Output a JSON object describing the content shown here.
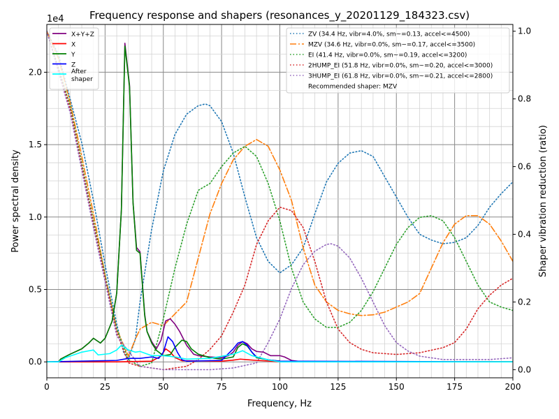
{
  "chart_data": {
    "type": "line",
    "title": "Frequency response and shapers (resonances_y_20201129_184323.csv)",
    "xlabel": "Frequency, Hz",
    "ylabel": "Power spectral density",
    "ylabel_right": "Shaper vibration reduction (ratio)",
    "y_offset_label": "1e4",
    "xlim": [
      0,
      200
    ],
    "ylim": [
      -1100,
      23300
    ],
    "ylim_right": [
      -0.024,
      1.02
    ],
    "x_ticks": [
      "0",
      "25",
      "50",
      "75",
      "100",
      "125",
      "150",
      "175",
      "200"
    ],
    "y_ticks": [
      "0.0",
      "0.5",
      "1.0",
      "1.5",
      "2.0"
    ],
    "y_ticks_right": [
      "0.0",
      "0.2",
      "0.4",
      "0.6",
      "0.8",
      "1.0"
    ],
    "grid": true,
    "legend_left": "top-left",
    "legend_right": "top-right",
    "recommended": "Recommended shaper: MZV",
    "psd_series": [
      {
        "name": "X+Y+Z",
        "color": "#800080",
        "x": [
          0,
          5,
          6,
          10,
          15,
          18,
          20,
          23,
          25,
          28,
          30,
          32,
          33.5,
          35.5,
          37,
          38.5,
          40,
          42,
          43,
          45,
          47,
          49,
          51,
          53,
          55,
          57,
          60,
          63,
          65,
          70,
          75,
          78,
          80,
          82,
          84,
          86,
          88,
          90,
          93,
          96,
          100,
          102,
          105,
          110,
          200
        ],
        "y": [
          0,
          0,
          200,
          530,
          900,
          1300,
          1630,
          1300,
          1630,
          2800,
          4750,
          10500,
          22000,
          19100,
          11000,
          7900,
          7600,
          3300,
          2100,
          1400,
          900,
          1500,
          2830,
          2970,
          2600,
          2100,
          1150,
          530,
          430,
          340,
          290,
          430,
          670,
          1150,
          1400,
          1250,
          900,
          720,
          670,
          430,
          430,
          340,
          100,
          0,
          0
        ]
      },
      {
        "name": "X",
        "color": "#ff0000",
        "x": [
          0,
          30,
          45,
          49,
          51,
          53,
          55,
          58,
          75,
          80,
          83,
          86,
          90,
          95,
          100,
          200
        ],
        "y": [
          0,
          0,
          50,
          400,
          900,
          670,
          300,
          80,
          50,
          120,
          190,
          150,
          100,
          60,
          0,
          0
        ]
      },
      {
        "name": "Y",
        "color": "#008000",
        "x": [
          0,
          5,
          6,
          10,
          15,
          18,
          20,
          23,
          25,
          28,
          30,
          32,
          33.5,
          35.5,
          37,
          38.5,
          40,
          42,
          43,
          45,
          47,
          50,
          53,
          55,
          58,
          60,
          62,
          65,
          70,
          75,
          80,
          82,
          84,
          86,
          88,
          90,
          95,
          100,
          110,
          200
        ],
        "y": [
          0,
          0,
          200,
          530,
          900,
          1300,
          1630,
          1300,
          1630,
          2800,
          4750,
          10500,
          21800,
          19000,
          11000,
          7700,
          7500,
          3200,
          2100,
          1300,
          800,
          430,
          500,
          1000,
          1500,
          1400,
          900,
          530,
          290,
          190,
          340,
          1000,
          1250,
          1100,
          670,
          290,
          140,
          50,
          0,
          0
        ]
      },
      {
        "name": "Z",
        "color": "#0000ff",
        "x": [
          0,
          30,
          35,
          40,
          45,
          48,
          50,
          52,
          54,
          56,
          58,
          60,
          75,
          80,
          82,
          84,
          86,
          88,
          90,
          95,
          100,
          200
        ],
        "y": [
          0,
          100,
          240,
          240,
          340,
          240,
          670,
          1730,
          1400,
          670,
          140,
          50,
          100,
          900,
          1300,
          1400,
          1150,
          670,
          340,
          140,
          50,
          0
        ]
      },
      {
        "name": "After\nshaper",
        "color": "#00ffff",
        "x": [
          0,
          5,
          8,
          15,
          20,
          22,
          27,
          30,
          32,
          35,
          38,
          40,
          45,
          50,
          55,
          60,
          70,
          80,
          84,
          88,
          95,
          100,
          200
        ],
        "y": [
          0,
          0,
          290,
          670,
          820,
          480,
          570,
          820,
          1150,
          820,
          670,
          720,
          430,
          430,
          340,
          190,
          240,
          530,
          770,
          430,
          140,
          0,
          0
        ]
      }
    ],
    "shaper_series": [
      {
        "name": "ZV (34.4 Hz, vibr=4.0%, sm~=0.13, accel<=4500)",
        "color": "#1f77b4",
        "style": "dotted",
        "x": [
          0,
          5,
          10,
          15,
          20,
          25,
          30,
          33,
          35,
          38,
          40,
          45,
          50,
          55,
          60,
          65,
          68,
          70,
          75,
          80,
          85,
          90,
          95,
          100,
          105,
          110,
          115,
          120,
          125,
          130,
          135,
          140,
          145,
          150,
          155,
          160,
          165,
          170,
          175,
          180,
          185,
          190,
          195,
          200
        ],
        "y": [
          1.0,
          0.93,
          0.8,
          0.67,
          0.5,
          0.31,
          0.135,
          0.05,
          0.03,
          0.09,
          0.2,
          0.415,
          0.587,
          0.695,
          0.755,
          0.78,
          0.785,
          0.78,
          0.733,
          0.64,
          0.51,
          0.39,
          0.32,
          0.286,
          0.31,
          0.36,
          0.46,
          0.555,
          0.61,
          0.64,
          0.647,
          0.63,
          0.57,
          0.51,
          0.45,
          0.4,
          0.383,
          0.372,
          0.376,
          0.39,
          0.426,
          0.48,
          0.52,
          0.555
        ]
      },
      {
        "name": "MZV (34.6 Hz, vibr=0.0%, sm~=0.17, accel<=3500)",
        "color": "#ff7f0e",
        "style": "dashdot",
        "x": [
          0,
          5,
          10,
          15,
          20,
          25,
          30,
          35,
          38,
          40,
          45,
          50,
          55,
          60,
          65,
          70,
          75,
          80,
          85,
          90,
          95,
          100,
          105,
          110,
          115,
          120,
          125,
          130,
          135,
          140,
          145,
          150,
          155,
          160,
          165,
          170,
          175,
          180,
          185,
          190,
          195,
          200
        ],
        "y": [
          1.0,
          0.92,
          0.79,
          0.63,
          0.46,
          0.28,
          0.12,
          0.04,
          0.09,
          0.12,
          0.14,
          0.13,
          0.165,
          0.2,
          0.33,
          0.46,
          0.55,
          0.62,
          0.66,
          0.68,
          0.66,
          0.59,
          0.5,
          0.36,
          0.25,
          0.2,
          0.175,
          0.165,
          0.16,
          0.162,
          0.17,
          0.185,
          0.2,
          0.225,
          0.3,
          0.375,
          0.43,
          0.455,
          0.455,
          0.43,
          0.38,
          0.32
        ]
      },
      {
        "name": "EI (41.4 Hz, vibr=0.0%, sm~=0.19, accel<=3200)",
        "color": "#2ca02c",
        "style": "dotted",
        "x": [
          0,
          10,
          20,
          30,
          35,
          40,
          45,
          50,
          55,
          60,
          65,
          70,
          75,
          80,
          85,
          90,
          95,
          100,
          105,
          110,
          115,
          120,
          125,
          130,
          135,
          140,
          145,
          150,
          155,
          160,
          165,
          170,
          175,
          180,
          185,
          190,
          195,
          200
        ],
        "y": [
          1.0,
          0.78,
          0.44,
          0.12,
          0.03,
          0.01,
          0.02,
          0.15,
          0.3,
          0.43,
          0.53,
          0.55,
          0.6,
          0.64,
          0.66,
          0.63,
          0.55,
          0.44,
          0.3,
          0.2,
          0.15,
          0.125,
          0.125,
          0.14,
          0.175,
          0.23,
          0.3,
          0.37,
          0.42,
          0.45,
          0.455,
          0.44,
          0.39,
          0.32,
          0.25,
          0.2,
          0.185,
          0.175
        ]
      },
      {
        "name": "2HUMP_EI (51.8 Hz, vibr=0.0%, sm~=0.20, accel<=3000)",
        "color": "#d62728",
        "style": "dotted",
        "x": [
          0,
          10,
          20,
          30,
          35,
          40,
          50,
          60,
          65,
          70,
          75,
          80,
          85,
          90,
          95,
          100,
          105,
          110,
          115,
          120,
          125,
          130,
          135,
          140,
          150,
          160,
          170,
          175,
          180,
          185,
          190,
          195,
          200
        ],
        "y": [
          1.0,
          0.77,
          0.43,
          0.11,
          0.02,
          0.01,
          0.0,
          0.01,
          0.03,
          0.06,
          0.1,
          0.17,
          0.25,
          0.37,
          0.44,
          0.48,
          0.47,
          0.42,
          0.32,
          0.2,
          0.12,
          0.08,
          0.06,
          0.05,
          0.045,
          0.05,
          0.065,
          0.08,
          0.12,
          0.18,
          0.22,
          0.25,
          0.27
        ]
      },
      {
        "name": "3HUMP_EI (61.8 Hz, vibr=0.0%, sm~=0.21, accel<=2800)",
        "color": "#9467bd",
        "style": "dotted",
        "x": [
          0,
          10,
          20,
          30,
          40,
          50,
          60,
          70,
          80,
          90,
          95,
          100,
          105,
          110,
          115,
          120,
          122,
          125,
          130,
          135,
          140,
          145,
          150,
          155,
          160,
          170,
          180,
          190,
          200
        ],
        "y": [
          1.0,
          0.76,
          0.42,
          0.1,
          0.01,
          0.0,
          0.0,
          0.0,
          0.005,
          0.02,
          0.08,
          0.15,
          0.24,
          0.31,
          0.35,
          0.37,
          0.372,
          0.365,
          0.33,
          0.27,
          0.2,
          0.13,
          0.08,
          0.055,
          0.04,
          0.03,
          0.03,
          0.03,
          0.035
        ]
      }
    ]
  }
}
